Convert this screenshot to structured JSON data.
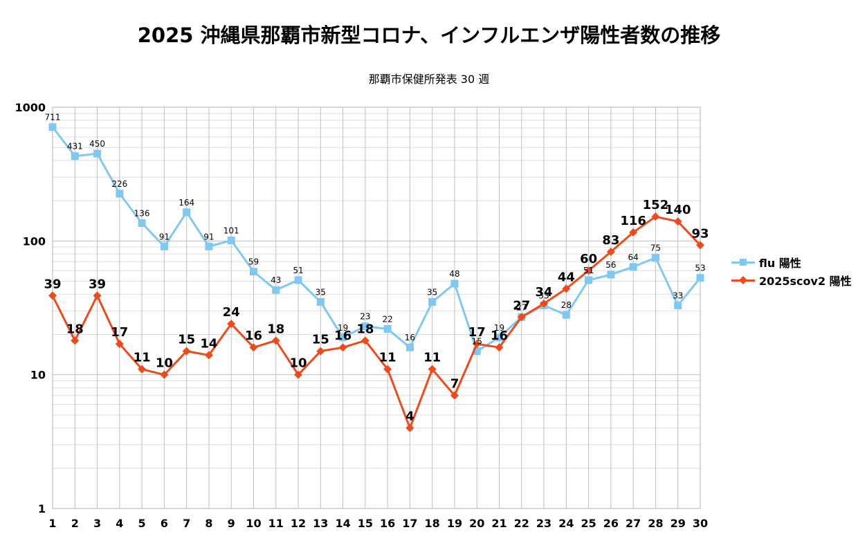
{
  "title": "2025 沖縄県那覇市新型コロナ、インフルエンザ陽性者数の推移",
  "subtitle": "那覇市保健所発表 30 週",
  "colors": {
    "flu": "#7ec8f2",
    "scov2": "#f04a1a",
    "grid": "#bfbfbf"
  },
  "chart_data": {
    "type": "line",
    "title": "2025 沖縄県那覇市新型コロナ、インフルエンザ陽性者数の推移",
    "subtitle": "那覇市保健所発表 30 週",
    "xlabel": "",
    "ylabel": "",
    "yscale": "log",
    "ylim": [
      1,
      1000
    ],
    "y_ticks": [
      "1",
      "10",
      "100",
      "1000"
    ],
    "grid": true,
    "legend_position": "right",
    "categories": [
      "1",
      "2",
      "3",
      "4",
      "5",
      "6",
      "7",
      "8",
      "9",
      "10",
      "11",
      "12",
      "13",
      "14",
      "15",
      "16",
      "17",
      "18",
      "19",
      "20",
      "21",
      "22",
      "23",
      "24",
      "25",
      "26",
      "27",
      "28",
      "29",
      "30"
    ],
    "series": [
      {
        "name": "flu 陽性",
        "marker": "square",
        "values": [
          711,
          431,
          450,
          226,
          136,
          91,
          164,
          91,
          101,
          59,
          43,
          51,
          35,
          19,
          23,
          22,
          16,
          35,
          48,
          15,
          19,
          27,
          33,
          28,
          51,
          56,
          64,
          75,
          33,
          53
        ]
      },
      {
        "name": "2025scov2 陽性",
        "marker": "diamond",
        "values": [
          39,
          18,
          39,
          17,
          11,
          10,
          15,
          14,
          24,
          16,
          18,
          10,
          15,
          16,
          18,
          11,
          4,
          11,
          7,
          17,
          16,
          27,
          34,
          44,
          60,
          83,
          116,
          152,
          140,
          93
        ]
      }
    ]
  }
}
